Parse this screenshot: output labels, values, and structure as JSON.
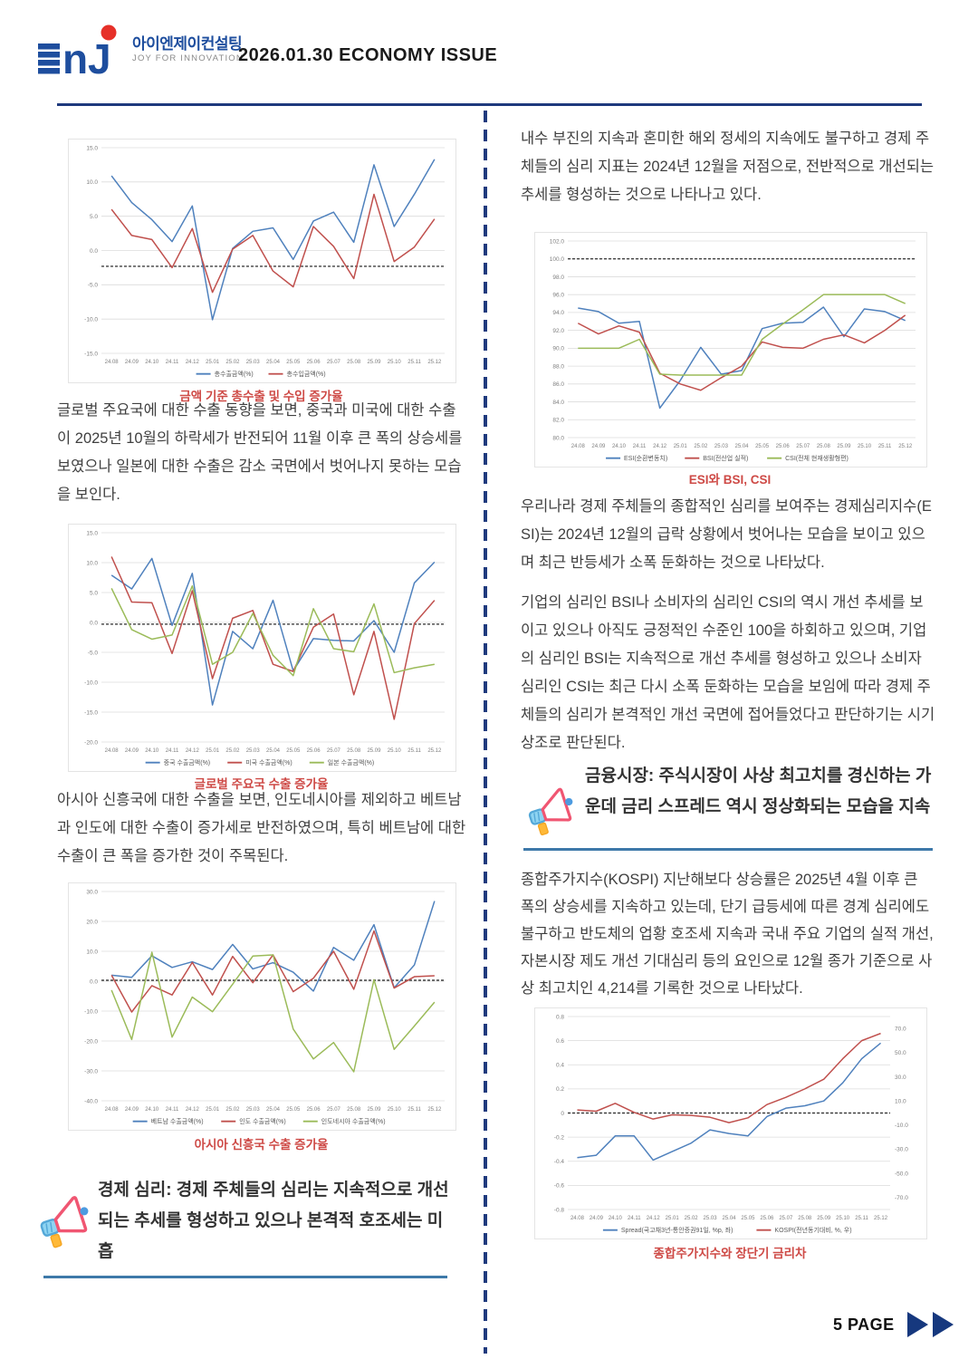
{
  "header": {
    "logo_kr": "아이엔제이컨설팅",
    "logo_sub": "JOY FOR INNOVATION",
    "issue_title": "2026.01.30 ECONOMY ISSUE"
  },
  "left_column": {
    "para1": "글로벌 주요국에 대한 수출 동향을 보면, 중국과 미국에 대한 수출이 2025년 10월의 하락세가 반전되어 11월 이후 큰 폭의 상승세를 보였으나 일본에 대한 수출은 감소 국면에서 벗어나지 못하는 모습을 보인다.",
    "para2": "아시아 신흥국에 대한 수출을 보면, 인도네시아를 제외하고 베트남과 인도에 대한 수출이 증가세로 반전하였으며, 특히 베트남에 대한 수출이 큰 폭을 증가한 것이 주목된다.",
    "section_heading": "경제 심리: 경제 주체들의 심리는 지속적으로 개선되는 추세를 형성하고 있으나 본격적 호조세는 미흡"
  },
  "right_column": {
    "para1": "내수 부진의 지속과 혼미한 해외 정세의 지속에도 불구하고 경제 주체들의 심리 지표는 2024년 12월을 저점으로, 전반적으로 개선되는 추세를 형성하는 것으로 나타나고 있다.",
    "para2": "우리나라 경제 주체들의 종합적인 심리를 보여주는 경제심리지수(ESI)는 2024년 12월의 급락 상황에서 벗어나는 모습을 보이고 있으며 최근 반등세가 소폭 둔화하는 것으로 나타났다.",
    "para3": "기업의 심리인 BSI나 소비자의 심리인 CSI의 역시 개선 추세를 보이고 있으나 아직도 긍정적인 수준인 100을 하회하고 있으며, 기업의 심리인 BSI는 지속적으로 개선 추세를 형성하고 있으나 소비자 심리인 CSI는 최근 다시 소폭 둔화하는 모습을 보임에 따라 경제 주체들의 심리가 본격적인 개선 국면에 접어들었다고 판단하기는 시기상조로 판단된다.",
    "section_heading": "금융시장: 주식시장이 사상 최고치를 경신하는 가운데 금리 스프레드 역시 정상화되는 모습을 지속",
    "para4": "종합주가지수(KOSPI) 지난해보다 상승률은 2025년 4월 이후 큰 폭의 상승세를 지속하고 있는데, 단기 급등세에 따른 경계 심리에도 불구하고 반도체의 업황 호조세 지속과 국내 주요 기업의 실적 개선, 자본시장 제도 개선 기대심리 등의 요인으로 12월 종가 기준으로 사상 최고치인 4,214를 기록한 것으로 나타났다."
  },
  "footer": {
    "page_label": "5 PAGE"
  },
  "colors": {
    "accent_navy": "#1F3A7D",
    "caption_red": "#CE4A46",
    "underline_blue": "#3E79A9",
    "series_blue": "#4F81BD",
    "series_red": "#C0504D",
    "series_green": "#9BBB59",
    "logo_blue": "#1E4E9E",
    "logo_red": "#E63029"
  },
  "chart_data": [
    {
      "type": "line",
      "title": "금액 기준 총수출 및 수입 증가율",
      "categories": [
        "24.08",
        "24.09",
        "24.10",
        "24.11",
        "24.12",
        "25.01",
        "25.02",
        "25.03",
        "25.04",
        "25.05",
        "25.06",
        "25.07",
        "25.08",
        "25.09",
        "25.10",
        "25.11",
        "25.12"
      ],
      "ylim": [
        -15,
        15
      ],
      "yticks": [
        "15.0",
        "10.0",
        "5.0",
        "0.0",
        "-5.0",
        "-10.0",
        "-15.0"
      ],
      "refline": -2.3,
      "grid": true,
      "legend_position": "bottom",
      "series": [
        {
          "name": "총수출금액(%)",
          "color": "#4F81BD",
          "values": [
            10.9,
            7.0,
            4.5,
            1.3,
            6.5,
            -10.1,
            0.3,
            2.8,
            3.3,
            -1.3,
            4.3,
            5.6,
            1.2,
            12.5,
            3.5,
            8.2,
            13.3
          ]
        },
        {
          "name": "총수입금액(%)",
          "color": "#C0504D",
          "values": [
            6.0,
            2.2,
            1.6,
            -2.5,
            3.2,
            -6.1,
            0.2,
            2.2,
            -3.0,
            -5.3,
            3.5,
            0.6,
            -4.1,
            8.2,
            -1.6,
            0.5,
            4.6
          ]
        }
      ]
    },
    {
      "type": "line",
      "title": "글로벌 주요국 수출 증가율",
      "categories": [
        "24.08",
        "24.09",
        "24.10",
        "24.11",
        "24.12",
        "25.01",
        "25.02",
        "25.03",
        "25.04",
        "25.05",
        "25.06",
        "25.07",
        "25.08",
        "25.09",
        "25.10",
        "25.11",
        "25.12"
      ],
      "ylim": [
        -20,
        15
      ],
      "yticks": [
        "15.0",
        "10.0",
        "5.0",
        "0.0",
        "-5.0",
        "-10.0",
        "-15.0",
        "-20.0"
      ],
      "refline": -0.3,
      "grid": true,
      "legend_position": "bottom",
      "series": [
        {
          "name": "중국 수출금액(%)",
          "color": "#4F81BD",
          "values": [
            7.9,
            5.6,
            10.7,
            -0.5,
            8.2,
            -13.8,
            -1.5,
            -4.4,
            3.7,
            -8.1,
            -2.7,
            -3.0,
            -3.1,
            0.3,
            -5.0,
            6.6,
            10.1
          ]
        },
        {
          "name": "미국 수출금액(%)",
          "color": "#C0504D",
          "values": [
            11.0,
            3.4,
            3.3,
            -5.2,
            5.3,
            -9.4,
            0.7,
            2.0,
            -7.0,
            -8.2,
            -0.8,
            1.4,
            -12.1,
            -1.5,
            -16.2,
            -0.2,
            3.7
          ]
        },
        {
          "name": "일본 수출금액(%)",
          "color": "#9BBB59",
          "values": [
            5.7,
            -1.2,
            -2.8,
            -2.1,
            6.1,
            -7.0,
            -5.0,
            1.5,
            -5.5,
            -8.9,
            2.3,
            -4.4,
            -4.9,
            3.1,
            -8.4,
            -7.6,
            -7.0
          ]
        }
      ]
    },
    {
      "type": "line",
      "title": "아시아 신흥국 수출 증가율",
      "categories": [
        "24.08",
        "24.09",
        "24.10",
        "24.11",
        "24.12",
        "25.01",
        "25.02",
        "25.03",
        "25.04",
        "25.05",
        "25.06",
        "25.07",
        "25.08",
        "25.09",
        "25.10",
        "25.11",
        "25.12"
      ],
      "ylim": [
        -40,
        30
      ],
      "yticks": [
        "30.0",
        "20.0",
        "10.0",
        "0.0",
        "-10.0",
        "-20.0",
        "-30.0",
        "-40.0"
      ],
      "refline": 0.3,
      "grid": true,
      "legend_position": "bottom",
      "series": [
        {
          "name": "베트남 수출금액(%)",
          "color": "#4F81BD",
          "values": [
            2.0,
            1.3,
            8.5,
            4.6,
            6.5,
            3.9,
            12.3,
            4.1,
            6.2,
            3.0,
            -3.3,
            11.3,
            7.0,
            18.9,
            -2.2,
            5.4,
            26.8
          ]
        },
        {
          "name": "인도 수출금액(%)",
          "color": "#C0504D",
          "values": [
            2.0,
            -10.3,
            -1.5,
            -4.6,
            6.3,
            -4.6,
            8.3,
            -0.5,
            8.8,
            -3.5,
            1.0,
            10.0,
            -2.7,
            16.8,
            -2.3,
            1.5,
            1.8
          ]
        },
        {
          "name": "인도네시아 수출금액(%)",
          "color": "#9BBB59",
          "values": [
            -3.0,
            -19.5,
            9.7,
            -18.7,
            -5.3,
            -10.2,
            -1.0,
            8.4,
            8.8,
            -16.0,
            -26.0,
            -20.5,
            -30.3,
            0.5,
            -22.8,
            -15.0,
            -7.0
          ]
        }
      ]
    },
    {
      "type": "line",
      "title": "ESI와 BSI, CSI",
      "categories": [
        "24.08",
        "24.09",
        "24.10",
        "24.11",
        "24.12",
        "25.01",
        "25.02",
        "25.03",
        "25.04",
        "25.05",
        "25.06",
        "25.07",
        "25.08",
        "25.09",
        "25.10",
        "25.11",
        "25.12"
      ],
      "ylim": [
        80,
        102
      ],
      "yticks": [
        "102.0",
        "100.0",
        "98.0",
        "96.0",
        "94.0",
        "92.0",
        "90.0",
        "88.0",
        "86.0",
        "84.0",
        "82.0",
        "80.0"
      ],
      "refline": 100,
      "grid": true,
      "legend_position": "bottom",
      "series": [
        {
          "name": "ESI(순환변동치)",
          "color": "#4F81BD",
          "values": [
            94.5,
            94.1,
            92.8,
            93.0,
            83.3,
            86.4,
            90.1,
            87.1,
            87.5,
            92.2,
            92.8,
            92.9,
            94.6,
            91.3,
            94.4,
            94.1,
            93.1
          ]
        },
        {
          "name": "BSI(전산업 실적)",
          "color": "#C0504D",
          "values": [
            92.8,
            91.6,
            92.5,
            91.8,
            87.2,
            86.0,
            85.3,
            86.7,
            88.0,
            90.7,
            90.1,
            90.0,
            91.0,
            91.5,
            90.6,
            92.0,
            93.7
          ]
        },
        {
          "name": "CSI(전체 현재생활형편)",
          "color": "#9BBB59",
          "values": [
            90.0,
            90.0,
            90.0,
            91.0,
            87.1,
            87.0,
            87.0,
            87.0,
            87.0,
            91.0,
            92.7,
            94.3,
            96.0,
            96.0,
            96.0,
            96.0,
            95.0
          ]
        }
      ]
    },
    {
      "type": "line",
      "title": "종합주가지수와 장단기 금리차",
      "categories": [
        "24.08",
        "24.09",
        "24.10",
        "24.11",
        "24.12",
        "25.01",
        "25.02",
        "25.03",
        "25.04",
        "25.05",
        "25.06",
        "25.07",
        "25.08",
        "25.09",
        "25.10",
        "25.11",
        "25.12"
      ],
      "ylim": [
        -0.8,
        0.8
      ],
      "yticks": [
        "0.8",
        "0.6",
        "0.4",
        "0.2",
        "0",
        "-0.2",
        "-0.4",
        "-0.6",
        "-0.8"
      ],
      "right_ylim": [
        -80,
        80
      ],
      "right_ticks": [
        "70.0",
        "50.0",
        "30.0",
        "10.0",
        "-10.0",
        "-30.0",
        "-50.0",
        "-70.0"
      ],
      "refline": 0,
      "grid": true,
      "legend_position": "bottom",
      "series": [
        {
          "name": "Spread(국고채3년-통안증권91일, %p, 좌)",
          "color": "#4F81BD",
          "values": [
            -0.37,
            -0.35,
            -0.19,
            -0.19,
            -0.39,
            -0.32,
            -0.25,
            -0.14,
            -0.17,
            -0.19,
            -0.03,
            0.04,
            0.06,
            0.1,
            0.25,
            0.45,
            0.58
          ]
        },
        {
          "name": "KOSPI(전년동기대비, %, 우)",
          "color": "#C0504D",
          "axis": "right",
          "values": [
            2.5,
            1.5,
            8.0,
            0.5,
            -5.0,
            -1.5,
            -2.0,
            -3.5,
            -8.0,
            -4.0,
            7.0,
            13.0,
            20.0,
            28.0,
            45.0,
            60.0,
            66.0
          ]
        }
      ]
    }
  ]
}
